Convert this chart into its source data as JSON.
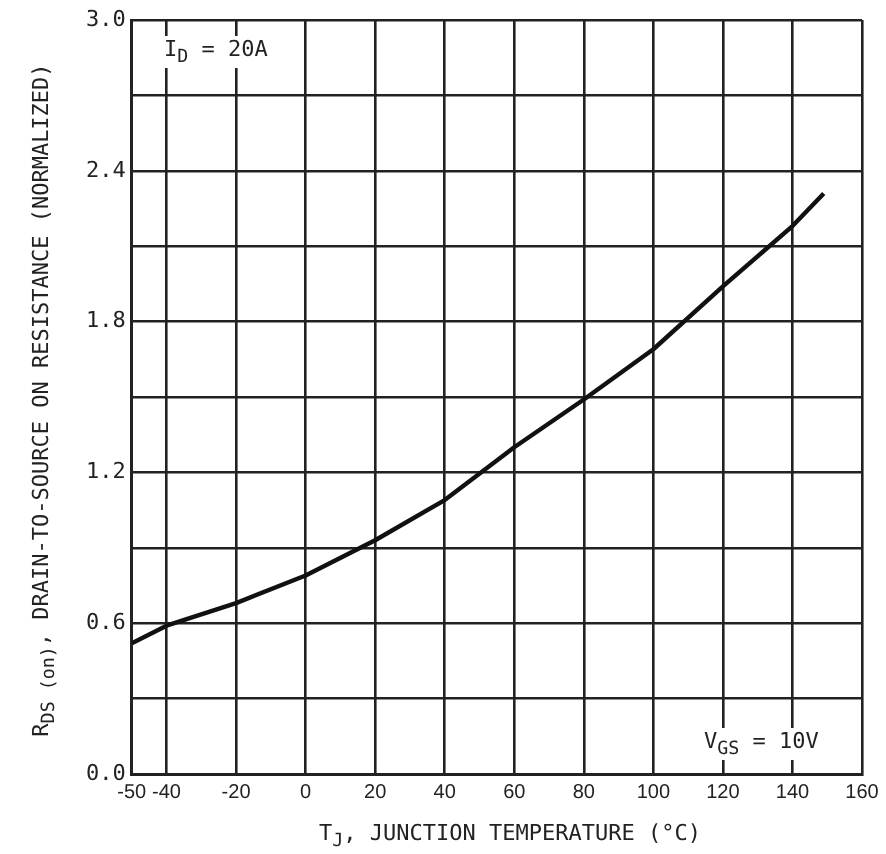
{
  "chart_data": {
    "type": "line",
    "xlabel": "T$_{J}$, JUNCTION TEMPERATURE (°C)",
    "ylabel": "R$_{DS (on)}$, DRAIN-TO-SOURCE ON RESISTANCE (NORMALIZED)",
    "annotations": [
      "I$_{D}$ = 20A",
      "V$_{GS}$ = 10V"
    ],
    "x": [
      -50,
      -40,
      -20,
      0,
      20,
      40,
      60,
      80,
      100,
      120,
      140,
      149
    ],
    "series": [
      {
        "color": "#111111",
        "values": [
          0.52,
          0.59,
          0.68,
          0.79,
          0.93,
          1.09,
          1.3,
          1.49,
          1.69,
          1.94,
          2.18,
          2.31
        ]
      }
    ],
    "xlim": [
      -50,
      160
    ],
    "xticks": [
      {
        "value": -50,
        "label": "-50"
      },
      {
        "value": -40,
        "label": "-40"
      },
      {
        "value": -20,
        "label": "-20"
      },
      0,
      20,
      40,
      60,
      80,
      100,
      120,
      140,
      160
    ],
    "ylim": [
      0,
      3
    ],
    "yticks": [
      {
        "value": 0,
        "label": "0.0"
      },
      {
        "value": 0.3,
        "label": null
      },
      {
        "value": 0.6,
        "label": "0.6"
      },
      {
        "value": 0.9,
        "label": null
      },
      {
        "value": 1.2,
        "label": "1.2"
      },
      {
        "value": 1.5,
        "label": null
      },
      {
        "value": 1.8,
        "label": "1.8"
      },
      {
        "value": 2.1,
        "label": null
      },
      {
        "value": 2.4,
        "label": "2.4"
      },
      {
        "value": 2.7,
        "label": null
      },
      {
        "value": 3,
        "label": "3.0"
      }
    ],
    "grid": true,
    "marker": "none",
    "line_style": "solid",
    "legend": false
  }
}
